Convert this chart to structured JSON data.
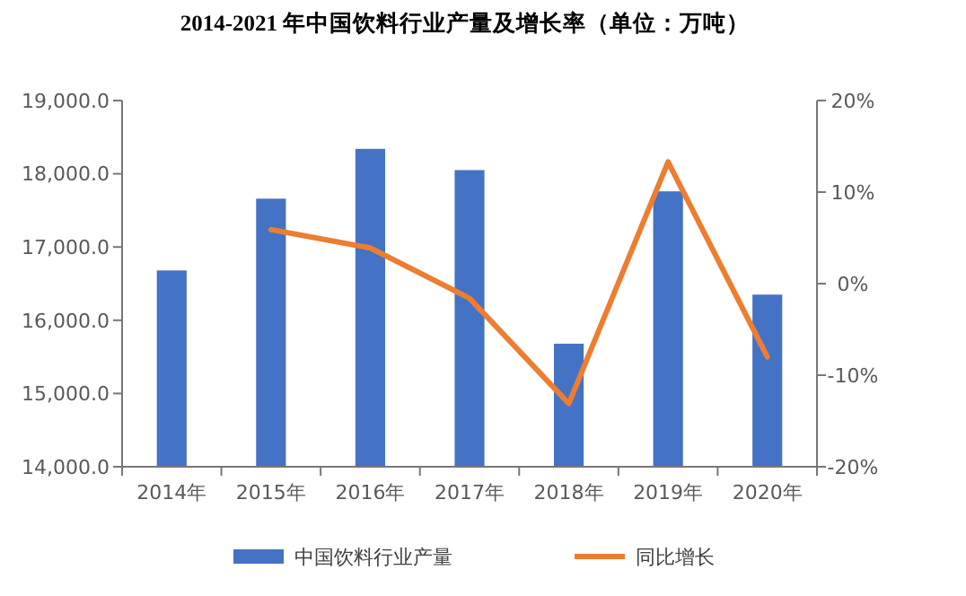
{
  "chart_data": {
    "type": "bar",
    "title": "2014-2021 年中国饮料行业产量及增长率（单位：万吨）",
    "categories": [
      "2014年",
      "2015年",
      "2016年",
      "2017年",
      "2018年",
      "2019年",
      "2020年"
    ],
    "series": [
      {
        "name": "中国饮料行业产量",
        "color": "#4472c4",
        "values": [
          16680,
          17660,
          18340,
          18050,
          15680,
          17760,
          16350
        ]
      },
      {
        "name": "同比增长",
        "type": "line",
        "axis": "y2",
        "color": "#ed7d31",
        "values": [
          null,
          5.9,
          3.9,
          -1.6,
          -13.1,
          13.3,
          -8.0
        ]
      }
    ],
    "ylim": [
      14000,
      19000
    ],
    "yticks": [
      {
        "value": 14000,
        "label": "14,000.0"
      },
      {
        "value": 15000,
        "label": "15,000.0"
      },
      {
        "value": 16000,
        "label": "16,000.0"
      },
      {
        "value": 17000,
        "label": "17,000.0"
      },
      {
        "value": 18000,
        "label": "18,000.0"
      },
      {
        "value": 19000,
        "label": "19,000.0"
      }
    ],
    "y2lim": [
      -20,
      20
    ],
    "y2ticks": [
      {
        "value": -20,
        "label": "-20%"
      },
      {
        "value": -10,
        "label": "-10%"
      },
      {
        "value": 0,
        "label": "0%"
      },
      {
        "value": 10,
        "label": "10%"
      },
      {
        "value": 20,
        "label": "20%"
      }
    ],
    "legend": "bottom",
    "marker": "none",
    "line_style": "solid"
  }
}
